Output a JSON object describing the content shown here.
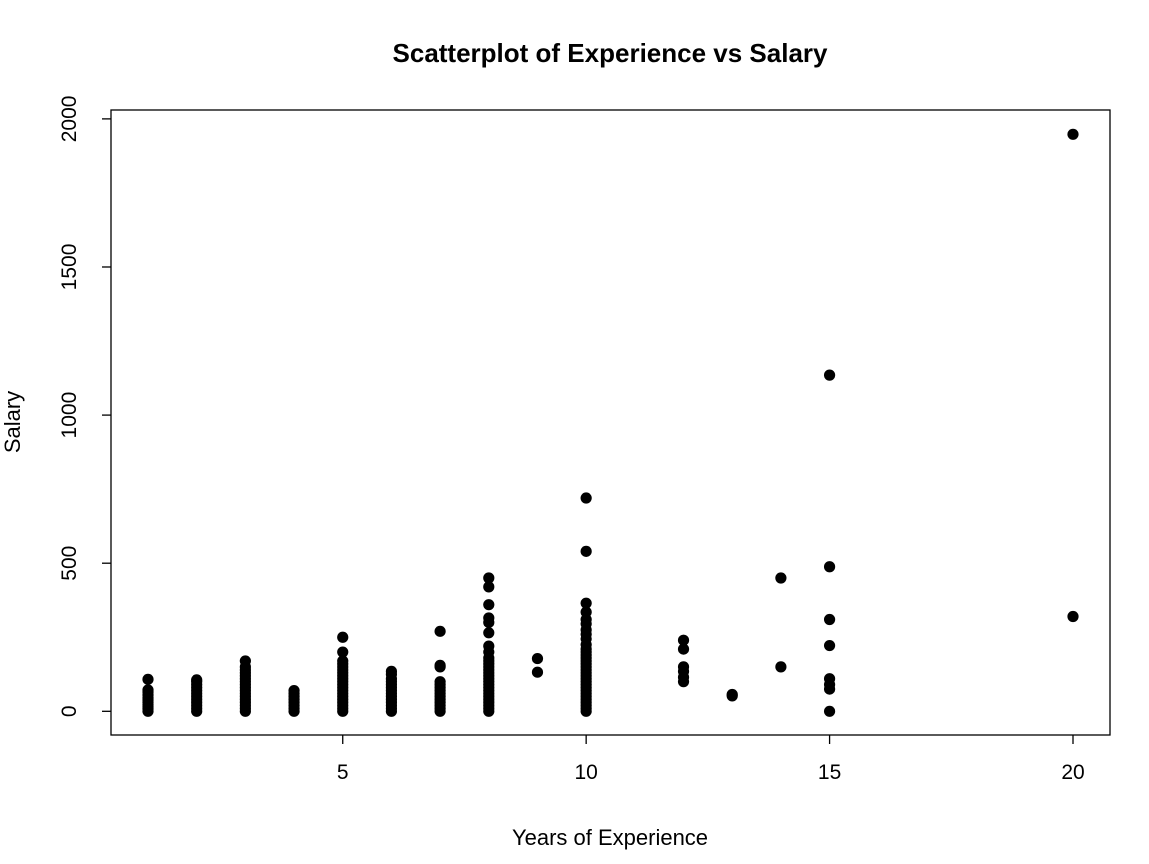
{
  "chart_data": {
    "type": "scatter",
    "title": "Scatterplot of Experience vs Salary",
    "xlabel": "Years of Experience",
    "ylabel": "Salary",
    "xlim": [
      0.24,
      20.76
    ],
    "ylim": [
      -80,
      2030
    ],
    "x_ticks": [
      5,
      10,
      15,
      20
    ],
    "y_ticks": [
      0,
      500,
      1000,
      1500,
      2000
    ],
    "grid": false,
    "legend": "none",
    "marker_color": "#000000",
    "points": [
      [
        1,
        0
      ],
      [
        1,
        8
      ],
      [
        1,
        15
      ],
      [
        1,
        22
      ],
      [
        1,
        30
      ],
      [
        1,
        38
      ],
      [
        1,
        45
      ],
      [
        1,
        55
      ],
      [
        1,
        65
      ],
      [
        1,
        72
      ],
      [
        1,
        108
      ],
      [
        2,
        0
      ],
      [
        2,
        10
      ],
      [
        2,
        20
      ],
      [
        2,
        30
      ],
      [
        2,
        40
      ],
      [
        2,
        50
      ],
      [
        2,
        60
      ],
      [
        2,
        70
      ],
      [
        2,
        80
      ],
      [
        2,
        90
      ],
      [
        2,
        100
      ],
      [
        2,
        106
      ],
      [
        3,
        0
      ],
      [
        3,
        10
      ],
      [
        3,
        20
      ],
      [
        3,
        30
      ],
      [
        3,
        40
      ],
      [
        3,
        50
      ],
      [
        3,
        60
      ],
      [
        3,
        70
      ],
      [
        3,
        80
      ],
      [
        3,
        90
      ],
      [
        3,
        100
      ],
      [
        3,
        110
      ],
      [
        3,
        120
      ],
      [
        3,
        130
      ],
      [
        3,
        140
      ],
      [
        3,
        150
      ],
      [
        3,
        170
      ],
      [
        4,
        0
      ],
      [
        4,
        10
      ],
      [
        4,
        20
      ],
      [
        4,
        30
      ],
      [
        4,
        40
      ],
      [
        4,
        50
      ],
      [
        4,
        60
      ],
      [
        4,
        70
      ],
      [
        5,
        0
      ],
      [
        5,
        10
      ],
      [
        5,
        20
      ],
      [
        5,
        30
      ],
      [
        5,
        40
      ],
      [
        5,
        50
      ],
      [
        5,
        60
      ],
      [
        5,
        70
      ],
      [
        5,
        80
      ],
      [
        5,
        90
      ],
      [
        5,
        100
      ],
      [
        5,
        110
      ],
      [
        5,
        120
      ],
      [
        5,
        130
      ],
      [
        5,
        140
      ],
      [
        5,
        150
      ],
      [
        5,
        160
      ],
      [
        5,
        170
      ],
      [
        5,
        200
      ],
      [
        5,
        250
      ],
      [
        6,
        0
      ],
      [
        6,
        10
      ],
      [
        6,
        20
      ],
      [
        6,
        30
      ],
      [
        6,
        40
      ],
      [
        6,
        50
      ],
      [
        6,
        60
      ],
      [
        6,
        70
      ],
      [
        6,
        80
      ],
      [
        6,
        90
      ],
      [
        6,
        100
      ],
      [
        6,
        110
      ],
      [
        6,
        125
      ],
      [
        6,
        135
      ],
      [
        7,
        0
      ],
      [
        7,
        10
      ],
      [
        7,
        20
      ],
      [
        7,
        30
      ],
      [
        7,
        40
      ],
      [
        7,
        50
      ],
      [
        7,
        60
      ],
      [
        7,
        70
      ],
      [
        7,
        80
      ],
      [
        7,
        90
      ],
      [
        7,
        100
      ],
      [
        7,
        150
      ],
      [
        7,
        155
      ],
      [
        7,
        270
      ],
      [
        8,
        0
      ],
      [
        8,
        10
      ],
      [
        8,
        20
      ],
      [
        8,
        30
      ],
      [
        8,
        40
      ],
      [
        8,
        50
      ],
      [
        8,
        60
      ],
      [
        8,
        70
      ],
      [
        8,
        80
      ],
      [
        8,
        90
      ],
      [
        8,
        100
      ],
      [
        8,
        110
      ],
      [
        8,
        120
      ],
      [
        8,
        130
      ],
      [
        8,
        140
      ],
      [
        8,
        150
      ],
      [
        8,
        160
      ],
      [
        8,
        170
      ],
      [
        8,
        180
      ],
      [
        8,
        200
      ],
      [
        8,
        220
      ],
      [
        8,
        265
      ],
      [
        8,
        300
      ],
      [
        8,
        315
      ],
      [
        8,
        360
      ],
      [
        8,
        420
      ],
      [
        8,
        450
      ],
      [
        9,
        132
      ],
      [
        9,
        178
      ],
      [
        10,
        0
      ],
      [
        10,
        10
      ],
      [
        10,
        20
      ],
      [
        10,
        30
      ],
      [
        10,
        40
      ],
      [
        10,
        50
      ],
      [
        10,
        60
      ],
      [
        10,
        70
      ],
      [
        10,
        80
      ],
      [
        10,
        90
      ],
      [
        10,
        100
      ],
      [
        10,
        110
      ],
      [
        10,
        120
      ],
      [
        10,
        130
      ],
      [
        10,
        140
      ],
      [
        10,
        150
      ],
      [
        10,
        160
      ],
      [
        10,
        170
      ],
      [
        10,
        180
      ],
      [
        10,
        190
      ],
      [
        10,
        200
      ],
      [
        10,
        210
      ],
      [
        10,
        225
      ],
      [
        10,
        245
      ],
      [
        10,
        260
      ],
      [
        10,
        275
      ],
      [
        10,
        295
      ],
      [
        10,
        310
      ],
      [
        10,
        335
      ],
      [
        10,
        365
      ],
      [
        10,
        540
      ],
      [
        10,
        720
      ],
      [
        12,
        100
      ],
      [
        12,
        115
      ],
      [
        12,
        135
      ],
      [
        12,
        150
      ],
      [
        12,
        210
      ],
      [
        12,
        240
      ],
      [
        13,
        52
      ],
      [
        13,
        57
      ],
      [
        14,
        150
      ],
      [
        14,
        450
      ],
      [
        15,
        0
      ],
      [
        15,
        75
      ],
      [
        15,
        90
      ],
      [
        15,
        110
      ],
      [
        15,
        222
      ],
      [
        15,
        310
      ],
      [
        15,
        488
      ],
      [
        15,
        1135
      ],
      [
        20,
        320
      ],
      [
        20,
        1948
      ]
    ]
  }
}
